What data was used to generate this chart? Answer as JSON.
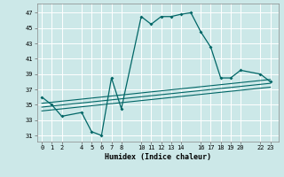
{
  "xlabel": "Humidex (Indice chaleur)",
  "bg_color": "#cce8e8",
  "grid_color": "#ffffff",
  "line_color": "#006666",
  "xticks": [
    0,
    1,
    2,
    4,
    5,
    6,
    7,
    8,
    10,
    11,
    12,
    13,
    14,
    16,
    17,
    18,
    19,
    20,
    22,
    23
  ],
  "yticks": [
    31,
    33,
    35,
    37,
    39,
    41,
    43,
    45,
    47
  ],
  "ylim": [
    30.2,
    48.2
  ],
  "xlim": [
    -0.5,
    23.8
  ],
  "series": [
    [
      0,
      36
    ],
    [
      1,
      35
    ],
    [
      2,
      33.5
    ],
    [
      4,
      34.0
    ],
    [
      5,
      31.5
    ],
    [
      6,
      31.0
    ],
    [
      7,
      38.5
    ],
    [
      8,
      34.5
    ],
    [
      10,
      46.5
    ],
    [
      11,
      45.5
    ],
    [
      12,
      46.5
    ],
    [
      13,
      46.5
    ],
    [
      14,
      46.8
    ],
    [
      15,
      47.0
    ],
    [
      16,
      44.5
    ],
    [
      17,
      42.5
    ],
    [
      18,
      38.5
    ],
    [
      19,
      38.5
    ],
    [
      20,
      39.5
    ],
    [
      22,
      39.0
    ],
    [
      23,
      38.0
    ]
  ],
  "linear1": [
    [
      0,
      35.2
    ],
    [
      23,
      38.3
    ]
  ],
  "linear2": [
    [
      0,
      34.7
    ],
    [
      23,
      37.8
    ]
  ],
  "linear3": [
    [
      0,
      34.2
    ],
    [
      23,
      37.3
    ]
  ]
}
